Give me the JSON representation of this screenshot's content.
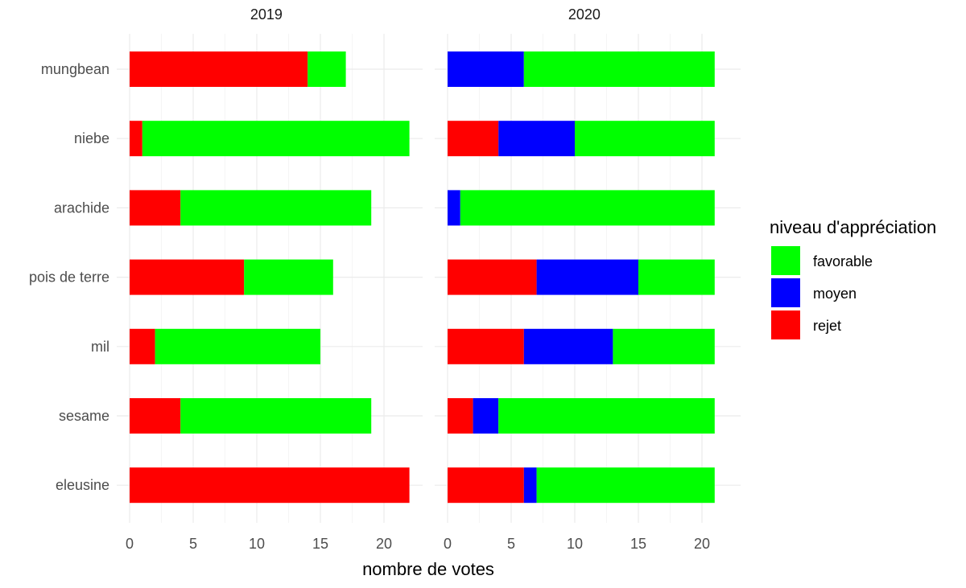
{
  "chart_data": {
    "type": "bar",
    "orientation": "horizontal",
    "stacked": true,
    "categories": [
      "mungbean",
      "niebe",
      "arachide",
      "pois de terre",
      "mil",
      "sesame",
      "eleusine"
    ],
    "xlabel": "nombre de votes",
    "xlim": [
      0,
      22
    ],
    "xticks": [
      0,
      5,
      10,
      15,
      20
    ],
    "grid": true,
    "legend": {
      "title": "niveau d'appréciation",
      "position": "right",
      "entries": [
        {
          "key": "favorable",
          "label": "favorable",
          "color": "#00ff00"
        },
        {
          "key": "moyen",
          "label": "moyen",
          "color": "#0000ff"
        },
        {
          "key": "rejet",
          "label": "rejet",
          "color": "#ff0000"
        }
      ]
    },
    "facets": [
      {
        "title": "2019",
        "series": [
          {
            "name": "rejet",
            "values": [
              14,
              1,
              4,
              9,
              2,
              4,
              22
            ]
          },
          {
            "name": "moyen",
            "values": [
              0,
              0,
              0,
              0,
              0,
              0,
              0
            ]
          },
          {
            "name": "favorable",
            "values": [
              3,
              21,
              15,
              7,
              13,
              15,
              0
            ]
          }
        ]
      },
      {
        "title": "2020",
        "series": [
          {
            "name": "rejet",
            "values": [
              0,
              4,
              0,
              7,
              6,
              2,
              6
            ]
          },
          {
            "name": "moyen",
            "values": [
              6,
              6,
              1,
              8,
              7,
              2,
              1
            ]
          },
          {
            "name": "favorable",
            "values": [
              15,
              11,
              20,
              6,
              8,
              17,
              14
            ]
          }
        ]
      }
    ]
  }
}
